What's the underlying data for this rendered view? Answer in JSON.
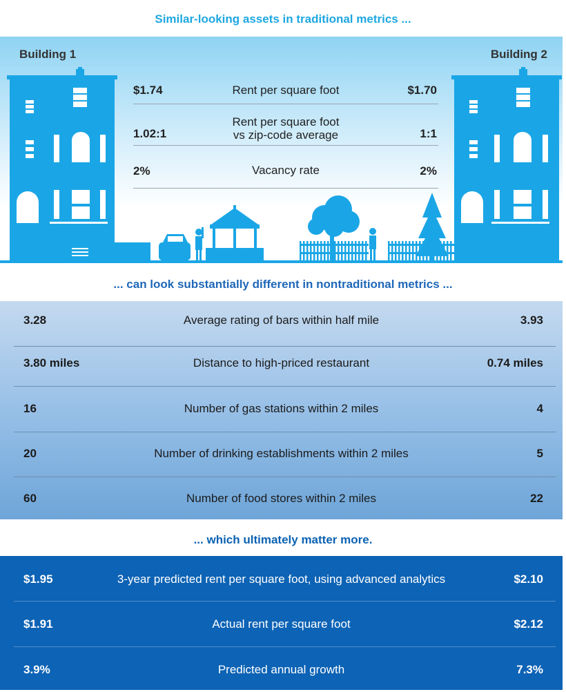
{
  "headings": {
    "traditional": "Similar-looking assets in traditional metrics ...",
    "nontraditional": "... can look substantially different in nontraditional metrics ...",
    "conclusion": "... which ultimately matter more."
  },
  "buildings": {
    "left": "Building 1",
    "right": "Building 2"
  },
  "traditional_metrics": [
    {
      "metric": "Rent per square foot",
      "building1": "$1.74",
      "building2": "$1.70"
    },
    {
      "metric_line1": "Rent per square foot",
      "metric_line2": "vs zip-code average",
      "building1": "1.02:1",
      "building2": "1:1"
    },
    {
      "metric": "Vacancy rate",
      "building1": "2%",
      "building2": "2%"
    }
  ],
  "nontraditional_metrics": [
    {
      "metric": "Average rating of bars within half mile",
      "building1": "3.28",
      "building2": "3.93"
    },
    {
      "metric": "Distance to high-priced restaurant",
      "building1": "3.80 miles",
      "building2": "0.74 miles"
    },
    {
      "metric": "Number of gas stations within 2 miles",
      "building1": "16",
      "building2": "4"
    },
    {
      "metric": "Number of drinking establishments within 2 miles",
      "building1": "20",
      "building2": "5"
    },
    {
      "metric": "Number of food stores within 2 miles",
      "building1": "60",
      "building2": "22"
    }
  ],
  "predicted_metrics": [
    {
      "metric": "3-year predicted rent per square foot, using advanced analytics",
      "building1": "$1.95",
      "building2": "$2.10"
    },
    {
      "metric": "Actual rent per square foot",
      "building1": "$1.91",
      "building2": "$2.12"
    },
    {
      "metric": "Predicted annual growth",
      "building1": "3.9%",
      "building2": "7.3%"
    }
  ],
  "colors": {
    "heading_light_blue": "#1ea7e1",
    "heading_mid_blue": "#1e67b8",
    "heading_dark_blue": "#0b62b3",
    "illustration_blue": "#1aa6e6",
    "predicted_band": "#0d63b5"
  }
}
